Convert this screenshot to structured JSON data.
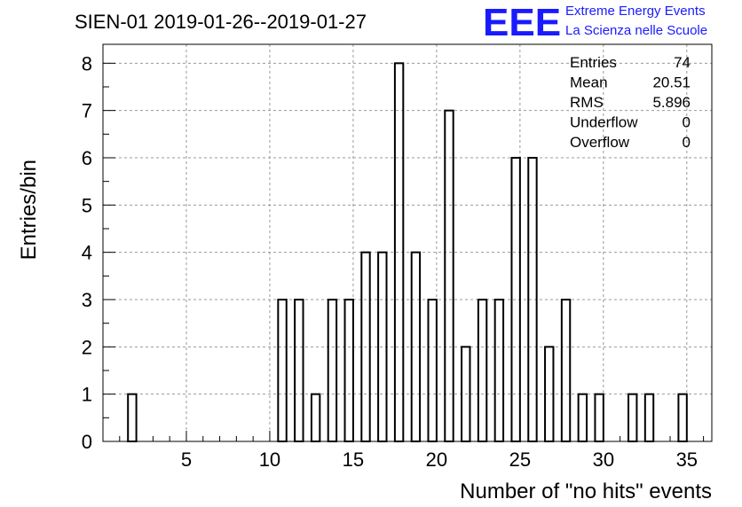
{
  "chart_data": {
    "type": "bar",
    "title": "SIEN-01 2019-01-26--2019-01-27",
    "xlabel": "Number of \"no hits\" events",
    "ylabel": "Entries/bin",
    "xlim": [
      0,
      36.5
    ],
    "ylim": [
      0,
      8.4
    ],
    "x_ticks": [
      5,
      10,
      15,
      20,
      25,
      30,
      35
    ],
    "y_ticks": [
      0,
      1,
      2,
      3,
      4,
      5,
      6,
      7,
      8
    ],
    "grid": true,
    "bins": [
      {
        "x": 2,
        "count": 1
      },
      {
        "x": 11,
        "count": 3
      },
      {
        "x": 12,
        "count": 3
      },
      {
        "x": 13,
        "count": 1
      },
      {
        "x": 14,
        "count": 3
      },
      {
        "x": 15,
        "count": 3
      },
      {
        "x": 16,
        "count": 4
      },
      {
        "x": 17,
        "count": 4
      },
      {
        "x": 18,
        "count": 8
      },
      {
        "x": 19,
        "count": 4
      },
      {
        "x": 20,
        "count": 3
      },
      {
        "x": 21,
        "count": 7
      },
      {
        "x": 22,
        "count": 2
      },
      {
        "x": 23,
        "count": 3
      },
      {
        "x": 24,
        "count": 3
      },
      {
        "x": 25,
        "count": 6
      },
      {
        "x": 26,
        "count": 6
      },
      {
        "x": 27,
        "count": 2
      },
      {
        "x": 28,
        "count": 3
      },
      {
        "x": 29,
        "count": 1
      },
      {
        "x": 30,
        "count": 1
      },
      {
        "x": 32,
        "count": 1
      },
      {
        "x": 33,
        "count": 1
      },
      {
        "x": 35,
        "count": 1
      }
    ],
    "stats": [
      {
        "label": "Entries",
        "value": "74"
      },
      {
        "label": "Mean",
        "value": "20.51"
      },
      {
        "label": "RMS",
        "value": "5.896"
      },
      {
        "label": "Underflow",
        "value": "0"
      },
      {
        "label": "Overflow",
        "value": "0"
      }
    ]
  },
  "logo": {
    "letters": "EEE",
    "line1": "Extreme Energy Events",
    "line2": "La Scienza nelle Scuole",
    "color": "#1a1aff"
  }
}
